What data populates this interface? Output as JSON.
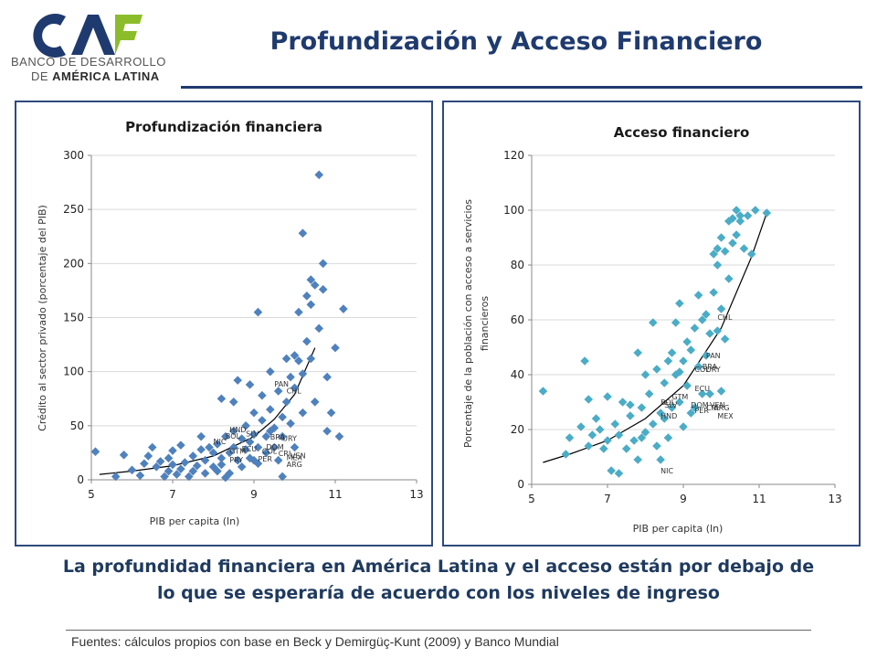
{
  "header": {
    "logo_text": "CAF",
    "logo_line1": "BANCO DE DESARROLLO",
    "logo_line2_pre": "DE ",
    "logo_line2_bold": "AMÉRICA LATINA",
    "title": "Profundización y Acceso Financiero"
  },
  "colors": {
    "title": "#1f3a6e",
    "panel_border": "#2e4a7d",
    "left_marker": "#4f81bd",
    "right_marker": "#4bacc6",
    "trend": "#000000"
  },
  "chart_data": [
    {
      "type": "scatter",
      "title": "Profundización financiera",
      "xlabel": "PIB per capita  (ln)",
      "ylabel": "Crédito al sector privado (porcentaje del PIB)",
      "xlim": [
        5,
        13
      ],
      "ylim": [
        0,
        300
      ],
      "xticks": [
        5,
        7,
        9,
        11,
        13
      ],
      "yticks": [
        0,
        50,
        100,
        150,
        200,
        250,
        300
      ],
      "marker": "diamond",
      "trend": "exponential",
      "trend_x": [
        5.2,
        10.5
      ],
      "trend_points": [
        [
          5.2,
          5
        ],
        [
          6,
          8
        ],
        [
          7,
          13
        ],
        [
          8,
          22
        ],
        [
          9,
          40
        ],
        [
          9.5,
          56
        ],
        [
          10,
          79
        ],
        [
          10.5,
          122
        ]
      ],
      "points": [
        [
          5.1,
          26
        ],
        [
          5.6,
          3
        ],
        [
          5.8,
          23
        ],
        [
          6.0,
          9
        ],
        [
          6.2,
          4
        ],
        [
          6.3,
          15
        ],
        [
          6.4,
          22
        ],
        [
          6.5,
          30
        ],
        [
          6.6,
          12
        ],
        [
          6.7,
          17
        ],
        [
          6.8,
          3
        ],
        [
          6.9,
          8
        ],
        [
          6.9,
          20
        ],
        [
          7.0,
          27
        ],
        [
          7.0,
          14
        ],
        [
          7.1,
          5
        ],
        [
          7.2,
          10
        ],
        [
          7.2,
          32
        ],
        [
          7.3,
          16
        ],
        [
          7.4,
          3
        ],
        [
          7.5,
          22
        ],
        [
          7.5,
          8
        ],
        [
          7.6,
          13
        ],
        [
          7.7,
          28
        ],
        [
          7.8,
          18
        ],
        [
          7.8,
          6
        ],
        [
          7.9,
          30
        ],
        [
          8.0,
          12
        ],
        [
          8.0,
          25
        ],
        [
          8.1,
          8
        ],
        [
          8.1,
          33
        ],
        [
          8.2,
          20
        ],
        [
          8.2,
          14
        ],
        [
          8.3,
          40
        ],
        [
          8.4,
          25
        ],
        [
          8.4,
          6
        ],
        [
          8.5,
          30
        ],
        [
          8.5,
          45
        ],
        [
          8.6,
          18
        ],
        [
          8.7,
          38
        ],
        [
          8.7,
          12
        ],
        [
          8.8,
          28
        ],
        [
          8.8,
          50
        ],
        [
          8.9,
          35
        ],
        [
          8.9,
          20
        ],
        [
          9.0,
          42
        ],
        [
          9.0,
          62
        ],
        [
          9.1,
          30
        ],
        [
          9.1,
          15
        ],
        [
          9.2,
          55
        ],
        [
          9.2,
          78
        ],
        [
          9.3,
          40
        ],
        [
          9.3,
          25
        ],
        [
          9.4,
          100
        ],
        [
          9.4,
          65
        ],
        [
          9.5,
          48
        ],
        [
          9.5,
          30
        ],
        [
          9.6,
          82
        ],
        [
          9.6,
          18
        ],
        [
          9.7,
          58
        ],
        [
          9.7,
          40
        ],
        [
          9.8,
          112
        ],
        [
          9.8,
          72
        ],
        [
          9.9,
          95
        ],
        [
          9.9,
          52
        ],
        [
          10.0,
          85
        ],
        [
          10.0,
          30
        ],
        [
          10.1,
          155
        ],
        [
          10.1,
          110
        ],
        [
          10.2,
          98
        ],
        [
          10.2,
          62
        ],
        [
          10.3,
          170
        ],
        [
          10.3,
          128
        ],
        [
          10.4,
          185
        ],
        [
          10.4,
          112
        ],
        [
          10.5,
          180
        ],
        [
          10.5,
          72
        ],
        [
          10.6,
          282
        ],
        [
          10.6,
          140
        ],
        [
          10.7,
          200
        ],
        [
          10.7,
          176
        ],
        [
          10.8,
          95
        ],
        [
          10.8,
          45
        ],
        [
          10.9,
          62
        ],
        [
          11.0,
          122
        ],
        [
          11.1,
          40
        ],
        [
          11.2,
          158
        ],
        [
          10.2,
          228
        ],
        [
          10.4,
          162
        ],
        [
          9.1,
          155
        ],
        [
          8.9,
          88
        ],
        [
          8.5,
          72
        ],
        [
          8.6,
          92
        ],
        [
          8.2,
          75
        ],
        [
          9.7,
          3
        ],
        [
          10.0,
          115
        ],
        [
          9.4,
          45
        ],
        [
          9.0,
          18
        ],
        [
          8.3,
          2
        ],
        [
          7.7,
          40
        ]
      ],
      "labels": [
        [
          "HND",
          8.4,
          44
        ],
        [
          "BOL",
          8.3,
          38
        ],
        [
          "NIC",
          8.0,
          33
        ],
        [
          "SLV",
          8.8,
          40
        ],
        [
          "BRA",
          9.4,
          37
        ],
        [
          "URY",
          9.7,
          36
        ],
        [
          "GTM",
          8.4,
          24
        ],
        [
          "ECU",
          8.7,
          26
        ],
        [
          "PRY",
          8.4,
          16
        ],
        [
          "PER",
          9.1,
          17
        ],
        [
          "COL",
          9.2,
          24
        ],
        [
          "DOM",
          9.3,
          28
        ],
        [
          "CRI",
          9.6,
          22
        ],
        [
          "MEX",
          9.8,
          18
        ],
        [
          "VEN",
          9.9,
          20
        ],
        [
          "ARG",
          9.8,
          12
        ],
        [
          "PAN",
          9.5,
          86
        ],
        [
          "CHL",
          9.8,
          80
        ]
      ]
    },
    {
      "type": "scatter",
      "title": "Acceso financiero",
      "xlabel": "PIB per capita (ln)",
      "ylabel": "Porcentaje de la población con acceso a servicios financieros",
      "ylabel_line1": "Porcentaje de la población con acceso a servicios",
      "ylabel_line2": "financieros",
      "xlim": [
        5,
        13
      ],
      "ylim": [
        0,
        120
      ],
      "xticks": [
        5,
        7,
        9,
        11,
        13
      ],
      "yticks": [
        0,
        20,
        40,
        60,
        80,
        100,
        120
      ],
      "marker": "diamond",
      "trend": "exponential",
      "trend_x": [
        5.3,
        11.2
      ],
      "trend_points": [
        [
          5.3,
          8
        ],
        [
          6,
          11
        ],
        [
          7,
          16
        ],
        [
          8,
          24
        ],
        [
          9,
          36
        ],
        [
          10,
          57
        ],
        [
          10.8,
          83
        ],
        [
          11.2,
          99
        ]
      ],
      "points": [
        [
          5.3,
          34
        ],
        [
          5.9,
          11
        ],
        [
          6.0,
          17
        ],
        [
          6.3,
          21
        ],
        [
          6.5,
          31
        ],
        [
          6.5,
          14
        ],
        [
          6.6,
          18
        ],
        [
          6.7,
          24
        ],
        [
          6.8,
          20
        ],
        [
          6.9,
          13
        ],
        [
          7.0,
          32
        ],
        [
          7.0,
          16
        ],
        [
          7.1,
          5
        ],
        [
          7.2,
          22
        ],
        [
          7.3,
          18
        ],
        [
          7.4,
          30
        ],
        [
          7.5,
          13
        ],
        [
          7.6,
          25
        ],
        [
          7.7,
          16
        ],
        [
          7.8,
          48
        ],
        [
          7.8,
          9
        ],
        [
          7.9,
          28
        ],
        [
          8.0,
          40
        ],
        [
          8.0,
          19
        ],
        [
          8.1,
          33
        ],
        [
          8.2,
          59
        ],
        [
          8.2,
          22
        ],
        [
          8.3,
          42
        ],
        [
          8.3,
          14
        ],
        [
          8.4,
          9
        ],
        [
          8.5,
          37
        ],
        [
          8.5,
          24
        ],
        [
          8.6,
          45
        ],
        [
          8.6,
          17
        ],
        [
          8.7,
          48
        ],
        [
          8.7,
          28
        ],
        [
          8.8,
          40
        ],
        [
          8.8,
          59
        ],
        [
          8.9,
          66
        ],
        [
          8.9,
          30
        ],
        [
          9.0,
          45
        ],
        [
          9.0,
          21
        ],
        [
          9.1,
          52
        ],
        [
          9.1,
          36
        ],
        [
          9.2,
          49
        ],
        [
          9.3,
          57
        ],
        [
          9.3,
          28
        ],
        [
          9.4,
          69
        ],
        [
          9.4,
          43
        ],
        [
          9.5,
          60
        ],
        [
          9.5,
          33
        ],
        [
          9.6,
          62
        ],
        [
          9.6,
          47
        ],
        [
          9.7,
          55
        ],
        [
          9.8,
          84
        ],
        [
          9.8,
          70
        ],
        [
          9.9,
          80
        ],
        [
          9.9,
          86
        ],
        [
          10.0,
          90
        ],
        [
          10.0,
          64
        ],
        [
          10.1,
          85
        ],
        [
          10.1,
          53
        ],
        [
          10.2,
          96
        ],
        [
          10.2,
          75
        ],
        [
          10.3,
          97
        ],
        [
          10.3,
          88
        ],
        [
          10.4,
          100
        ],
        [
          10.4,
          91
        ],
        [
          10.5,
          96
        ],
        [
          10.5,
          98
        ],
        [
          10.6,
          86
        ],
        [
          10.7,
          98
        ],
        [
          10.8,
          84
        ],
        [
          10.9,
          100
        ],
        [
          11.2,
          99
        ],
        [
          6.4,
          45
        ],
        [
          7.3,
          4
        ],
        [
          7.6,
          29
        ],
        [
          8.9,
          41
        ],
        [
          9.7,
          33
        ],
        [
          10.0,
          34
        ],
        [
          9.2,
          26
        ],
        [
          8.4,
          26
        ],
        [
          7.9,
          17
        ],
        [
          9.9,
          56
        ]
      ],
      "labels": [
        [
          "CHL",
          9.9,
          60
        ],
        [
          "PAN",
          9.6,
          46
        ],
        [
          "BRA",
          9.5,
          42
        ],
        [
          "URY",
          9.6,
          41
        ],
        [
          "COL",
          9.3,
          41
        ],
        [
          "ECU",
          9.3,
          34
        ],
        [
          "GTM",
          8.7,
          31
        ],
        [
          "BOL",
          8.4,
          29
        ],
        [
          "SLV",
          8.5,
          28
        ],
        [
          "DOM",
          9.2,
          28
        ],
        [
          "VEN",
          9.7,
          28
        ],
        [
          "PER",
          9.3,
          26
        ],
        [
          "ARG",
          9.8,
          27
        ],
        [
          "CRI",
          9.6,
          27
        ],
        [
          "MEX",
          9.9,
          24
        ],
        [
          "HND",
          8.4,
          24
        ],
        [
          "NIC",
          8.4,
          4
        ]
      ]
    }
  ],
  "caption": {
    "line1": "La profundidad financiera en América Latina y el acceso están por debajo de",
    "line2": "lo que se esperaría de acuerdo con los niveles de ingreso"
  },
  "footnote": "Fuentes: cálculos propios con base en Beck y Demirgüç-Kunt (2009)  y Banco Mundial"
}
